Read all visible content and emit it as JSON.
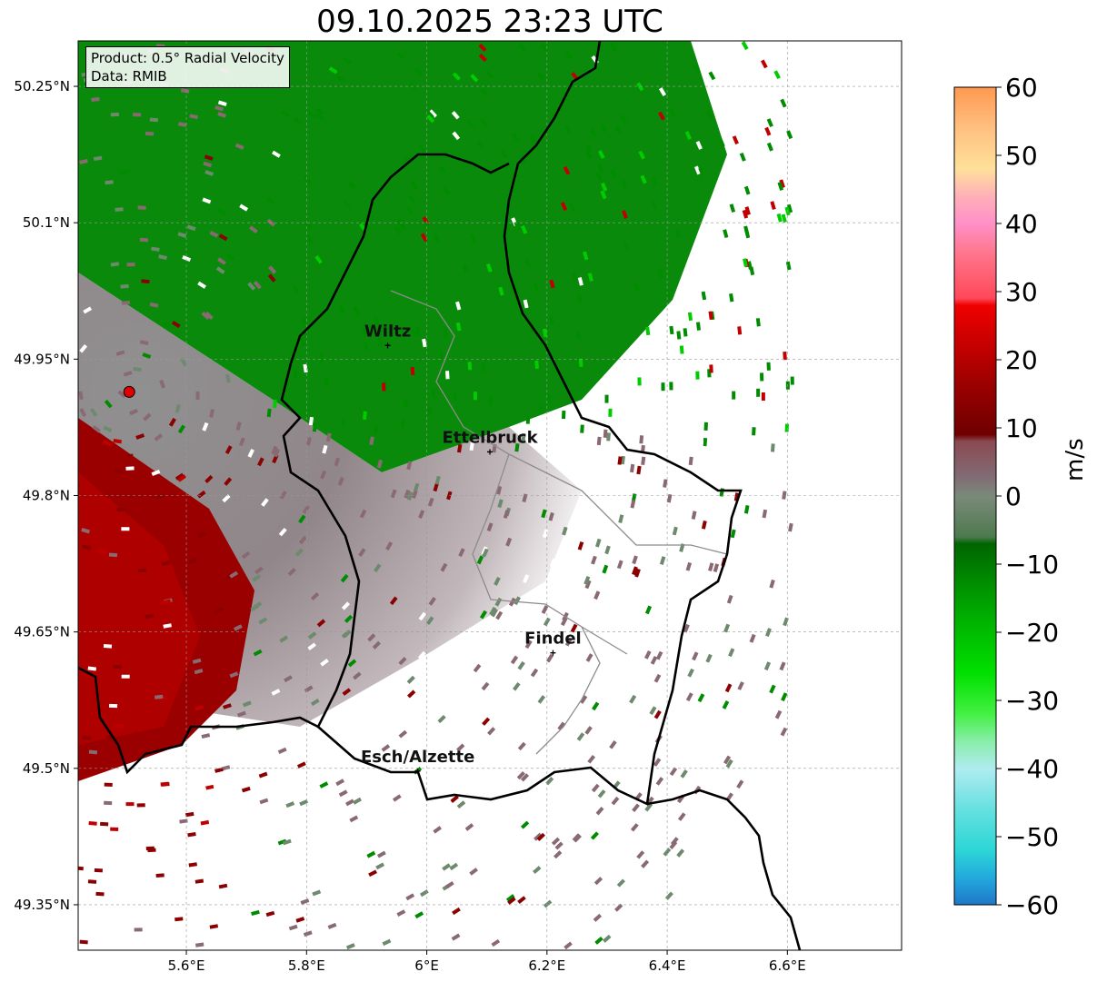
{
  "title": "09.10.2025 23:23 UTC",
  "info": {
    "product": "Product: 0.5° Radial Velocity",
    "source": "Data: RMIB"
  },
  "map": {
    "lon_range": [
      5.42,
      6.79
    ],
    "lat_range": [
      49.3,
      50.3
    ],
    "x_ticks": [
      {
        "value": 5.6,
        "label": "5.6°E"
      },
      {
        "value": 5.8,
        "label": "5.8°E"
      },
      {
        "value": 6.0,
        "label": "6°E"
      },
      {
        "value": 6.2,
        "label": "6.2°E"
      },
      {
        "value": 6.4,
        "label": "6.4°E"
      },
      {
        "value": 6.6,
        "label": "6.6°E"
      }
    ],
    "y_ticks": [
      {
        "value": 50.25,
        "label": "50.25°N"
      },
      {
        "value": 50.1,
        "label": "50.1°N"
      },
      {
        "value": 49.95,
        "label": "49.95°N"
      },
      {
        "value": 49.8,
        "label": "49.8°N"
      },
      {
        "value": 49.65,
        "label": "49.65°N"
      },
      {
        "value": 49.5,
        "label": "49.5°N"
      },
      {
        "value": 49.35,
        "label": "49.35°N"
      }
    ],
    "grid": true,
    "radar_site": {
      "lon": 5.505,
      "lat": 49.914,
      "color": "#e00000"
    },
    "cities": [
      {
        "name": "Wiltz",
        "lon": 5.935,
        "lat": 49.965
      },
      {
        "name": "Ettelbruck",
        "lon": 6.105,
        "lat": 49.848
      },
      {
        "name": "Findel",
        "lon": 6.21,
        "lat": 49.627
      },
      {
        "name": "Esch/Alzette",
        "lon": 5.985,
        "lat": 49.497
      }
    ],
    "velocity_colors": {
      "away_strong": "#8b0000",
      "away": "#c00000",
      "near_zero_pos": "#8a6a72",
      "near_zero_neg": "#6e8a6e",
      "toward": "#008c00",
      "toward_strong": "#00cc00"
    }
  },
  "colorbar": {
    "label": "m/s",
    "min": -60,
    "max": 60,
    "ticks": [
      {
        "value": 60,
        "label": "60"
      },
      {
        "value": 50,
        "label": "50"
      },
      {
        "value": 40,
        "label": "40"
      },
      {
        "value": 30,
        "label": "30"
      },
      {
        "value": 20,
        "label": "20"
      },
      {
        "value": 10,
        "label": "10"
      },
      {
        "value": 0,
        "label": "0"
      },
      {
        "value": -10,
        "label": "−10"
      },
      {
        "value": -20,
        "label": "−20"
      },
      {
        "value": -30,
        "label": "−30"
      },
      {
        "value": -40,
        "label": "−40"
      },
      {
        "value": -50,
        "label": "−50"
      },
      {
        "value": -60,
        "label": "−60"
      }
    ],
    "stops": [
      {
        "value": -60,
        "color": "#1f77c8"
      },
      {
        "value": -56,
        "color": "#22aadd"
      },
      {
        "value": -52,
        "color": "#2cd6d6"
      },
      {
        "value": -46,
        "color": "#66e0e0"
      },
      {
        "value": -40,
        "color": "#b0ecf0"
      },
      {
        "value": -36,
        "color": "#88eea8"
      },
      {
        "value": -32,
        "color": "#44f044"
      },
      {
        "value": -26,
        "color": "#00e000"
      },
      {
        "value": -18,
        "color": "#00b000"
      },
      {
        "value": -12,
        "color": "#008800"
      },
      {
        "value": -7,
        "color": "#006400"
      },
      {
        "value": -6,
        "color": "#4e7a4e"
      },
      {
        "value": 0,
        "color": "#7a8a7a"
      },
      {
        "value": 3,
        "color": "#826a74"
      },
      {
        "value": 8,
        "color": "#8a4a52"
      },
      {
        "value": 9,
        "color": "#6e0000"
      },
      {
        "value": 17,
        "color": "#a00000"
      },
      {
        "value": 28,
        "color": "#f00000"
      },
      {
        "value": 29,
        "color": "#ff4858"
      },
      {
        "value": 36,
        "color": "#ff7890"
      },
      {
        "value": 40,
        "color": "#ff90c8"
      },
      {
        "value": 44,
        "color": "#ffb0b8"
      },
      {
        "value": 48,
        "color": "#ffe09a"
      },
      {
        "value": 54,
        "color": "#ffc080"
      },
      {
        "value": 60,
        "color": "#ff9850"
      }
    ]
  }
}
